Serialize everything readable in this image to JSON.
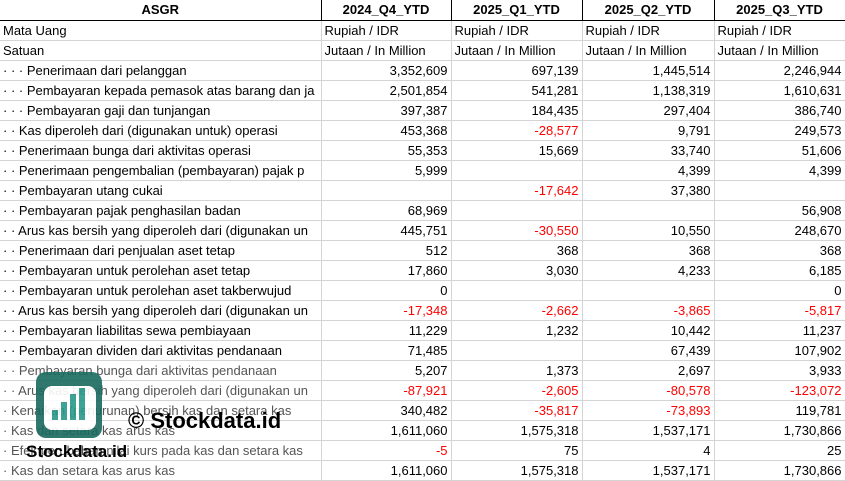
{
  "headers": [
    "ASGR",
    "2024_Q4_YTD",
    "2025_Q1_YTD",
    "2025_Q2_YTD",
    "2025_Q3_YTD"
  ],
  "rows": [
    {
      "label": "Mata Uang",
      "values": [
        "Rupiah / IDR",
        "Rupiah / IDR",
        "Rupiah / IDR",
        "Rupiah / IDR"
      ],
      "type": "text"
    },
    {
      "label": "Satuan",
      "values": [
        "Jutaan / In Million",
        "Jutaan / In Million",
        "Jutaan / In Million",
        "Jutaan / In Million"
      ],
      "type": "text"
    },
    {
      "label": "· · · Penerimaan dari pelanggan",
      "values": [
        "3,352,609",
        "697,139",
        "1,445,514",
        "2,246,944"
      ]
    },
    {
      "label": "· · · Pembayaran kepada pemasok atas barang dan ja",
      "values": [
        "2,501,854",
        "541,281",
        "1,138,319",
        "1,610,631"
      ]
    },
    {
      "label": "· · · Pembayaran gaji dan tunjangan",
      "values": [
        "397,387",
        "184,435",
        "297,404",
        "386,740"
      ]
    },
    {
      "label": "· · Kas diperoleh dari (digunakan untuk) operasi",
      "values": [
        "453,368",
        "-28,577",
        "9,791",
        "249,573"
      ]
    },
    {
      "label": "· · Penerimaan bunga dari aktivitas operasi",
      "values": [
        "55,353",
        "15,669",
        "33,740",
        "51,606"
      ]
    },
    {
      "label": "· · Penerimaan pengembalian (pembayaran) pajak p",
      "values": [
        "5,999",
        "",
        "4,399",
        "4,399"
      ]
    },
    {
      "label": "· · Pembayaran utang cukai",
      "values": [
        "",
        "-17,642",
        "37,380",
        ""
      ]
    },
    {
      "label": "· · Pembayaran pajak penghasilan badan",
      "values": [
        "68,969",
        "",
        "",
        "56,908"
      ]
    },
    {
      "label": "· · Arus kas bersih yang diperoleh dari (digunakan un",
      "values": [
        "445,751",
        "-30,550",
        "10,550",
        "248,670"
      ]
    },
    {
      "label": "· · Penerimaan dari penjualan aset tetap",
      "values": [
        "512",
        "368",
        "368",
        "368"
      ]
    },
    {
      "label": "· · Pembayaran untuk perolehan aset tetap",
      "values": [
        "17,860",
        "3,030",
        "4,233",
        "6,185"
      ]
    },
    {
      "label": "· · Pembayaran untuk perolehan aset takberwujud",
      "values": [
        "0",
        "",
        "",
        "0"
      ]
    },
    {
      "label": "· · Arus kas bersih yang diperoleh dari (digunakan un",
      "values": [
        "-17,348",
        "-2,662",
        "-3,865",
        "-5,817"
      ]
    },
    {
      "label": "· · Pembayaran liabilitas sewa pembiayaan",
      "values": [
        "11,229",
        "1,232",
        "10,442",
        "11,237"
      ]
    },
    {
      "label": "· · Pembayaran dividen dari aktivitas pendanaan",
      "values": [
        "71,485",
        "",
        "67,439",
        "107,902"
      ]
    },
    {
      "label": "· · Pembayaran bunga dari aktivitas pendanaan",
      "values": [
        "5,207",
        "1,373",
        "2,697",
        "3,933"
      ]
    },
    {
      "label": "· · Arus kas bersih yang diperoleh dari (digunakan un",
      "values": [
        "-87,921",
        "-2,605",
        "-80,578",
        "-123,072"
      ]
    },
    {
      "label": "· Kenaikan (penurunan) bersih kas dan setara kas",
      "values": [
        "340,482",
        "-35,817",
        "-73,893",
        "119,781"
      ]
    },
    {
      "label": "· Kas dan setara kas arus kas",
      "values": [
        "1,611,060",
        "1,575,318",
        "1,537,171",
        "1,730,866"
      ]
    },
    {
      "label": "· Efek perubahan nilai kurs pada kas dan setara kas",
      "values": [
        "-5",
        "75",
        "4",
        "25"
      ]
    },
    {
      "label": "· Kas dan setara kas arus kas",
      "values": [
        "1,611,060",
        "1,575,318",
        "1,537,171",
        "1,730,866"
      ]
    }
  ],
  "watermark": {
    "text": "© Stockdata.id",
    "brand": "Stockdata.id"
  },
  "colors": {
    "negative": "#ff0000",
    "logo": "#1a6a5e"
  }
}
